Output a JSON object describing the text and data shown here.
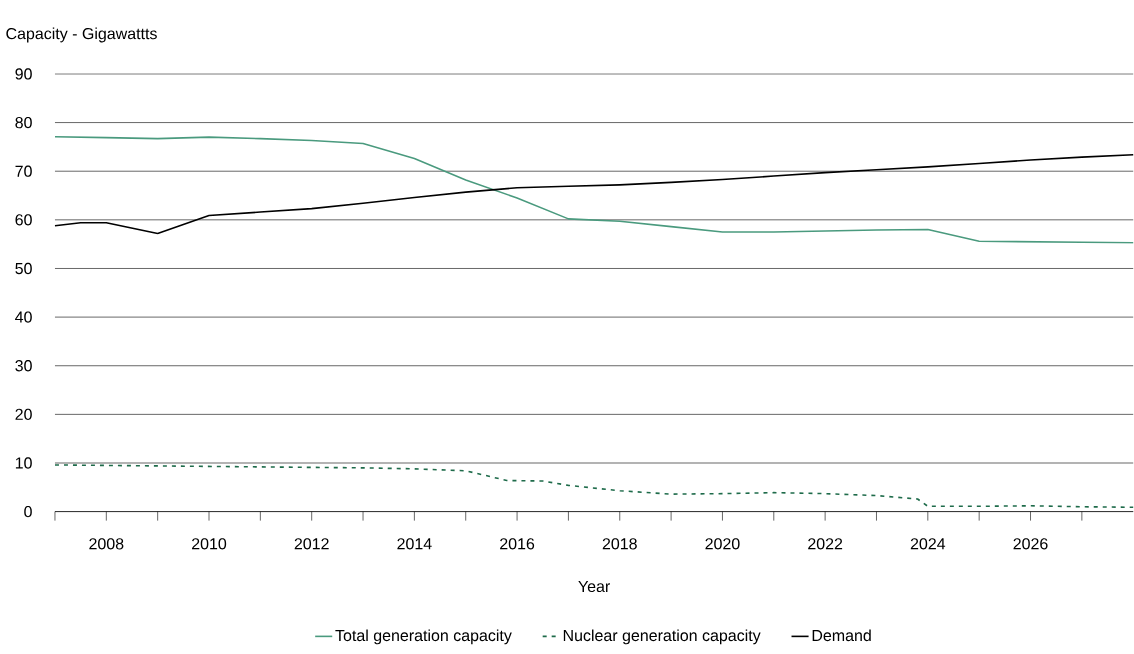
{
  "chart_data": {
    "type": "line",
    "ylabel": "Capacity  - Gigawattts",
    "xlabel": "Year",
    "xlim": [
      2007,
      2028
    ],
    "ylim": [
      0,
      90
    ],
    "yticks": [
      0,
      10,
      20,
      30,
      40,
      50,
      60,
      70,
      80,
      90
    ],
    "xticks": [
      {
        "value": 2007,
        "label": null
      },
      2008,
      {
        "value": 2009,
        "label": null
      },
      2010,
      {
        "value": 2011,
        "label": null
      },
      2012,
      {
        "value": 2013,
        "label": null
      },
      2014,
      {
        "value": 2015,
        "label": null
      },
      2016,
      {
        "value": 2017,
        "label": null
      },
      2018,
      {
        "value": 2019,
        "label": null
      },
      2020,
      {
        "value": 2021,
        "label": null
      },
      2022,
      {
        "value": 2023,
        "label": null
      },
      2024,
      {
        "value": 2025,
        "label": null
      },
      2026,
      {
        "value": 2027,
        "label": null
      }
    ],
    "grid": "y",
    "legend": "bottom",
    "marker": "none",
    "series": [
      {
        "name": "Total generation capacity",
        "color": "#4a9a7e",
        "line_style": "solid",
        "x": [
          2007,
          2008,
          2009,
          2010,
          2011,
          2012,
          2013,
          2014,
          2015,
          2016,
          2017,
          2018,
          2019,
          2020,
          2021,
          2022,
          2023,
          2024,
          2025,
          2026,
          2027,
          2028
        ],
        "values": [
          77.1,
          76.9,
          76.7,
          77.0,
          76.7,
          76.3,
          75.7,
          72.6,
          68.2,
          64.5,
          60.2,
          59.7,
          58.6,
          57.5,
          57.5,
          57.7,
          57.9,
          58.0,
          55.6,
          55.5,
          55.4,
          55.3
        ]
      },
      {
        "name": "Nuclear generation capacity",
        "color": "#1e6b4a",
        "line_style": "dashed",
        "x": [
          2007,
          2008,
          2009,
          2010,
          2011,
          2012,
          2013,
          2014,
          2015,
          2015.8,
          2016.5,
          2017,
          2018,
          2019,
          2020,
          2021,
          2022,
          2023,
          2023.8,
          2024,
          2025,
          2026,
          2027,
          2028
        ],
        "values": [
          9.6,
          9.5,
          9.4,
          9.3,
          9.2,
          9.1,
          9.0,
          8.8,
          8.4,
          6.4,
          6.3,
          5.4,
          4.3,
          3.6,
          3.7,
          3.9,
          3.7,
          3.3,
          2.6,
          1.1,
          1.1,
          1.2,
          1.0,
          0.9
        ]
      },
      {
        "name": "Demand",
        "color": "#000000",
        "line_style": "solid",
        "x": [
          2007,
          2007.5,
          2008,
          2009,
          2010,
          2011,
          2012,
          2013,
          2014,
          2015,
          2016,
          2017,
          2018,
          2019,
          2020,
          2021,
          2022,
          2023,
          2024,
          2025,
          2026,
          2027,
          2028
        ],
        "values": [
          58.8,
          59.4,
          59.4,
          57.2,
          60.9,
          61.6,
          62.3,
          63.4,
          64.6,
          65.7,
          66.6,
          66.9,
          67.2,
          67.7,
          68.3,
          69.0,
          69.7,
          70.3,
          70.9,
          71.6,
          72.3,
          72.9,
          73.4
        ]
      }
    ]
  }
}
